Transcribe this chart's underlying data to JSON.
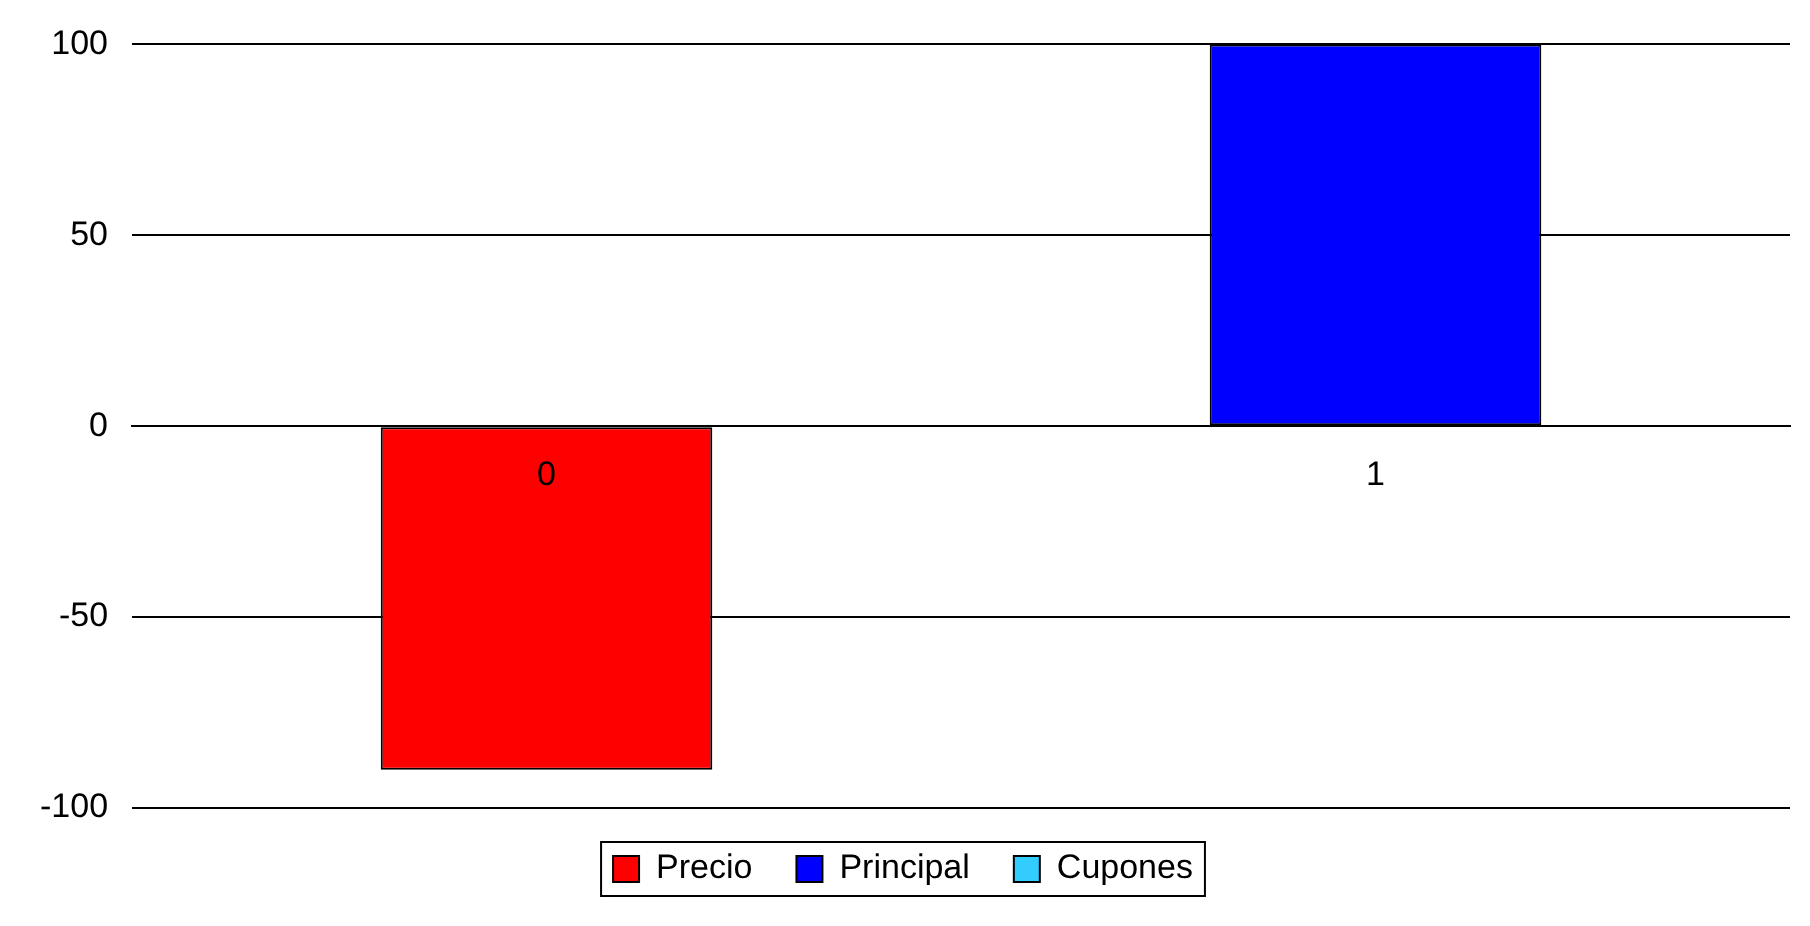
{
  "chart_data": {
    "type": "bar",
    "stacked": true,
    "categories": [
      "0",
      "1"
    ],
    "series": [
      {
        "name": "Precio",
        "color": "#ff0000",
        "values": [
          -90,
          0
        ]
      },
      {
        "name": "Principal",
        "color": "#0000ff",
        "values": [
          0,
          100
        ]
      },
      {
        "name": "Cupones",
        "color": "#33ccff",
        "values": [
          0,
          0
        ]
      }
    ],
    "ylim": [
      -100,
      100
    ],
    "yticks": [
      -100,
      -50,
      0,
      50,
      100
    ],
    "grid": "y",
    "legend": "bottom"
  }
}
